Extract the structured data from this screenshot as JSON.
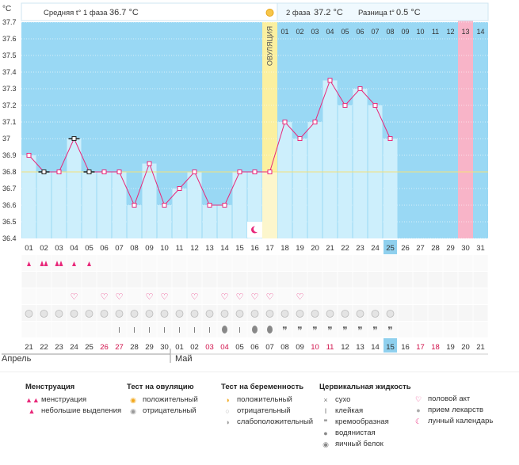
{
  "header": {
    "unit": "°C",
    "phase1_label": "Средняя t° 1 фаза",
    "phase1_value": "36.7 °C",
    "phase2_label": "2 фаза",
    "phase2_value": "37.2 °C",
    "diff_label": "Разница t°",
    "diff_value": "0.5 °C",
    "ovulation_label": "ОВУЛЯЦИЯ"
  },
  "colors": {
    "phase1_bg": "#99d8f4",
    "phase2_bg": "#ccecfb",
    "bars": "#cdeffc",
    "ovulation": "#fbf0a0",
    "menstruation_day": "#f8b4c8",
    "line": "#e8287a",
    "coverline": "#f2e98c",
    "today": "#8fd0ee"
  },
  "chart_data": {
    "type": "line",
    "ylim": [
      36.4,
      37.7
    ],
    "yticks": [
      "37.7",
      "37.6",
      "37.5",
      "37.4",
      "37.3",
      "37.2",
      "37.1",
      "37",
      "36.9",
      "36.8",
      "36.7",
      "36.6",
      "36.5",
      "36.4"
    ],
    "coverline": 36.8,
    "cycle_days": [
      "01",
      "02",
      "03",
      "04",
      "05",
      "06",
      "07",
      "08",
      "09",
      "10",
      "11",
      "12",
      "13",
      "14",
      "15",
      "16",
      "17",
      "18",
      "19",
      "20",
      "21",
      "22",
      "23",
      "24",
      "25",
      "26",
      "27",
      "28",
      "29",
      "30",
      "31"
    ],
    "phase2_days": [
      "01",
      "02",
      "03",
      "04",
      "05",
      "06",
      "07",
      "08",
      "09",
      "10",
      "11",
      "12",
      "13",
      "14"
    ],
    "ovulation_day_index": 17,
    "temperatures": [
      36.9,
      36.8,
      36.8,
      37.0,
      36.8,
      36.8,
      36.8,
      36.6,
      36.85,
      36.6,
      36.7,
      36.8,
      36.6,
      36.6,
      36.8,
      36.8,
      36.8,
      37.1,
      37.0,
      37.1,
      37.35,
      37.2,
      37.3,
      37.2,
      37.0,
      null,
      null,
      null,
      null,
      null,
      null
    ],
    "disturbed": [
      false,
      true,
      false,
      true,
      true,
      false,
      false,
      false,
      false,
      false,
      false,
      false,
      false,
      false,
      false,
      false,
      false,
      false,
      false,
      false,
      false,
      false,
      false,
      false,
      false,
      false,
      false,
      false,
      false,
      false,
      false
    ],
    "today_index": 25
  },
  "dates": [
    "21",
    "22",
    "23",
    "24",
    "25",
    "26",
    "27",
    "28",
    "29",
    "30",
    "01",
    "02",
    "03",
    "04",
    "05",
    "06",
    "07",
    "08",
    "09",
    "10",
    "11",
    "12",
    "13",
    "14",
    "15",
    "16",
    "17",
    "18",
    "19",
    "20",
    "21"
  ],
  "date_red": [
    false,
    false,
    false,
    false,
    false,
    true,
    true,
    false,
    false,
    false,
    false,
    false,
    true,
    true,
    false,
    false,
    false,
    false,
    false,
    true,
    true,
    false,
    false,
    false,
    false,
    false,
    true,
    true,
    false,
    false,
    false
  ],
  "months": [
    {
      "label": "Апрель",
      "day": 1
    },
    {
      "label": "Май",
      "day": 11
    }
  ],
  "rows": {
    "menstruation": [
      "small",
      "heavy",
      "heavy",
      "small",
      "small",
      "",
      "",
      "",
      "",
      "",
      "",
      "",
      "",
      "",
      "",
      "",
      "",
      "",
      "",
      "",
      "",
      "",
      "",
      "",
      "",
      "",
      "",
      "",
      "",
      "",
      ""
    ],
    "sex": [
      false,
      false,
      false,
      true,
      false,
      true,
      true,
      false,
      true,
      true,
      false,
      true,
      false,
      true,
      true,
      true,
      true,
      false,
      true,
      false,
      false,
      false,
      false,
      false,
      false,
      false,
      false,
      false,
      false,
      false,
      false
    ],
    "meds": [
      true,
      true,
      true,
      true,
      true,
      true,
      true,
      true,
      true,
      true,
      true,
      true,
      true,
      true,
      true,
      true,
      true,
      true,
      true,
      true,
      true,
      true,
      true,
      true,
      true,
      false,
      false,
      false,
      false,
      false,
      false
    ],
    "cervical": [
      "",
      "",
      "",
      "",
      "",
      "",
      "sticky",
      "sticky",
      "sticky",
      "sticky",
      "sticky",
      "sticky",
      "sticky",
      "watery",
      "sticky",
      "watery",
      "watery",
      "creamy",
      "creamy",
      "creamy",
      "creamy",
      "creamy",
      "creamy",
      "creamy",
      "creamy",
      "",
      "",
      "",
      "",
      "",
      ""
    ],
    "moon_day": 16
  },
  "legend": {
    "menstruation": {
      "title": "Менструация",
      "items": [
        "менструация",
        "небольшие выделения"
      ]
    },
    "ovulation_test": {
      "title": "Тест на овуляцию",
      "items": [
        "положительный",
        "отрицательный"
      ]
    },
    "pregnancy_test": {
      "title": "Тест на беременность",
      "items": [
        "положительный",
        "отрицательный",
        "слабоположительный"
      ]
    },
    "cervical": {
      "title": "Цервикальная жидкость",
      "items": [
        "сухо",
        "клейкая",
        "кремообразная",
        "водянистая",
        "яичный белок"
      ]
    },
    "other": {
      "items": [
        "половой акт",
        "прием лекарств",
        "лунный календарь"
      ]
    }
  }
}
